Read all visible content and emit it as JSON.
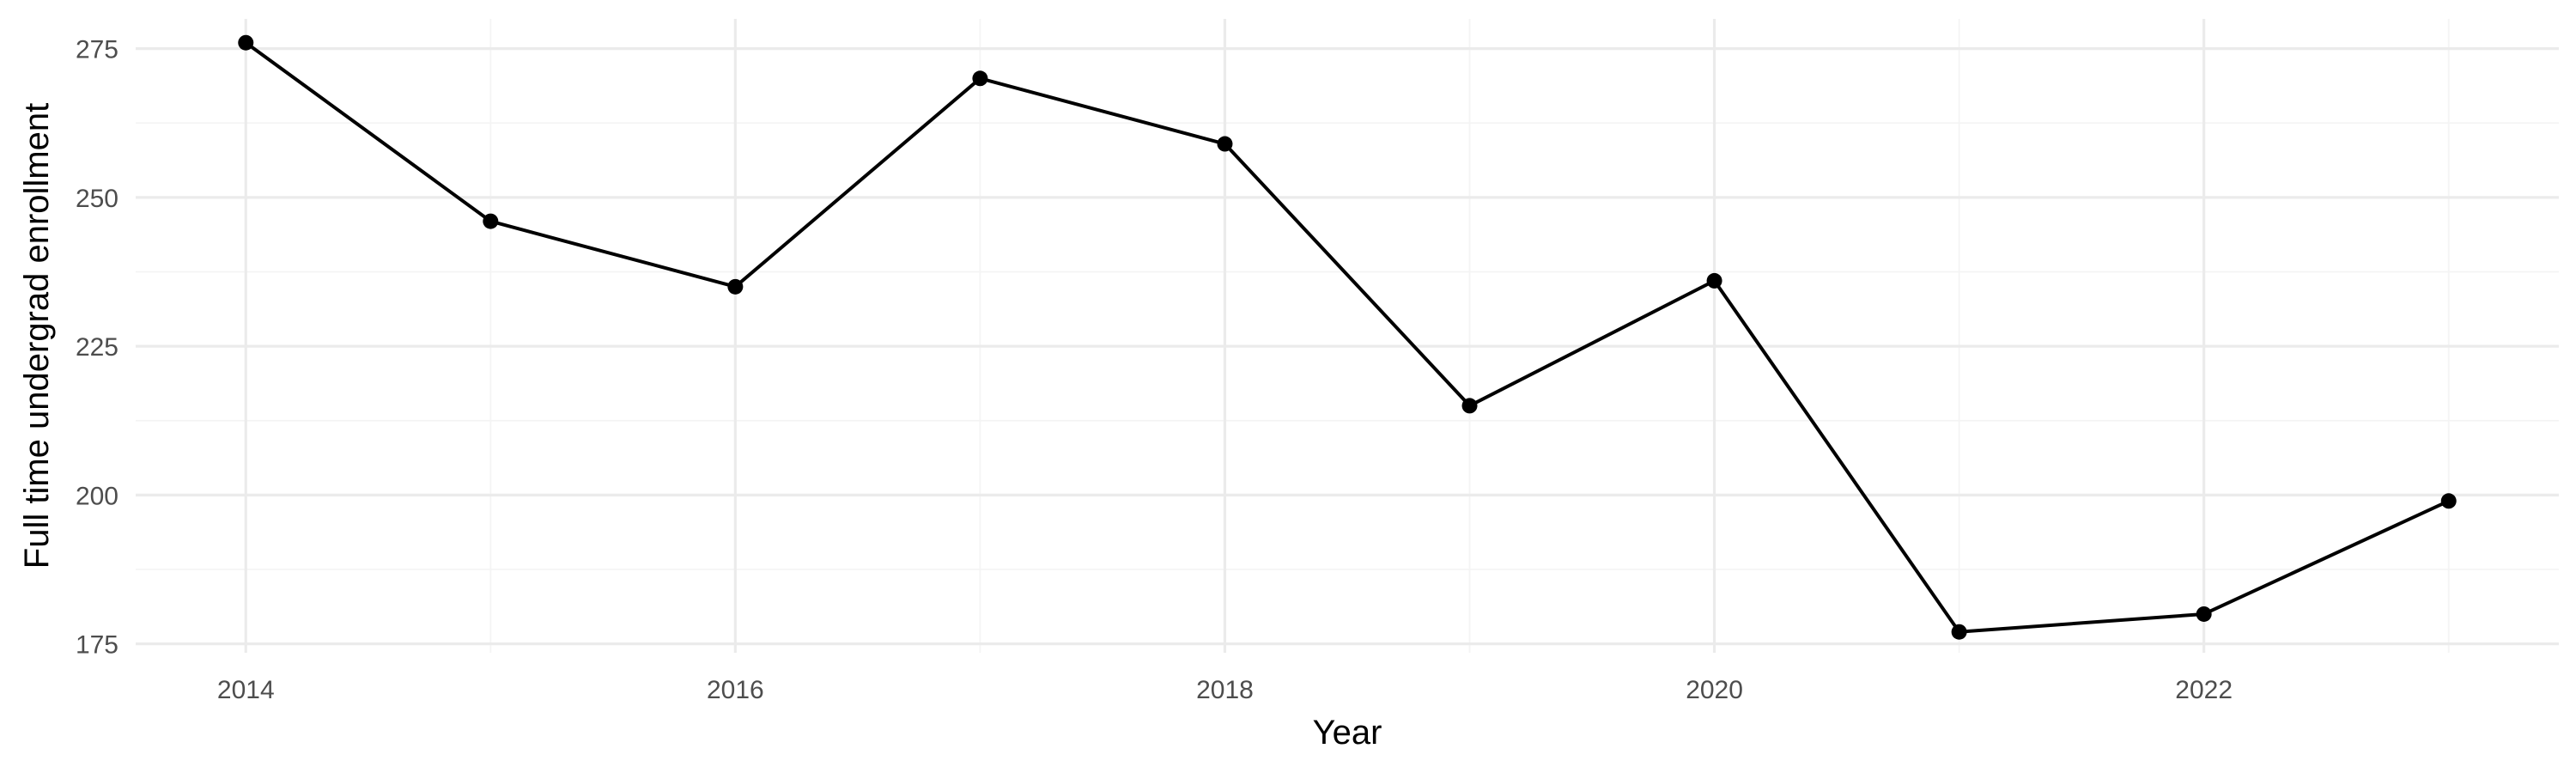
{
  "chart_data": {
    "type": "line",
    "xlabel": "Year",
    "ylabel": "Full time undergrad enrollment",
    "x": [
      2014,
      2015,
      2016,
      2017,
      2018,
      2019,
      2020,
      2021,
      2022,
      2023
    ],
    "series": [
      {
        "values": [
          276,
          246,
          235,
          270,
          259,
          215,
          236,
          177,
          180,
          199
        ]
      }
    ],
    "xlim": [
      2013.55,
      2023.45
    ],
    "ylim": [
      173.5,
      280
    ],
    "x_ticks": [
      2014,
      2016,
      2018,
      2020,
      2022
    ],
    "x_tick_labels": [
      "2014",
      "2016",
      "2018",
      "2020",
      "2022"
    ],
    "y_ticks": [
      175,
      200,
      225,
      250,
      275
    ],
    "y_tick_labels": [
      "175",
      "200",
      "225",
      "250",
      "275"
    ],
    "grid": true,
    "legend": "none",
    "line_color": "#000000",
    "point_color": "#000000",
    "grid_color": "#ebebeb"
  }
}
